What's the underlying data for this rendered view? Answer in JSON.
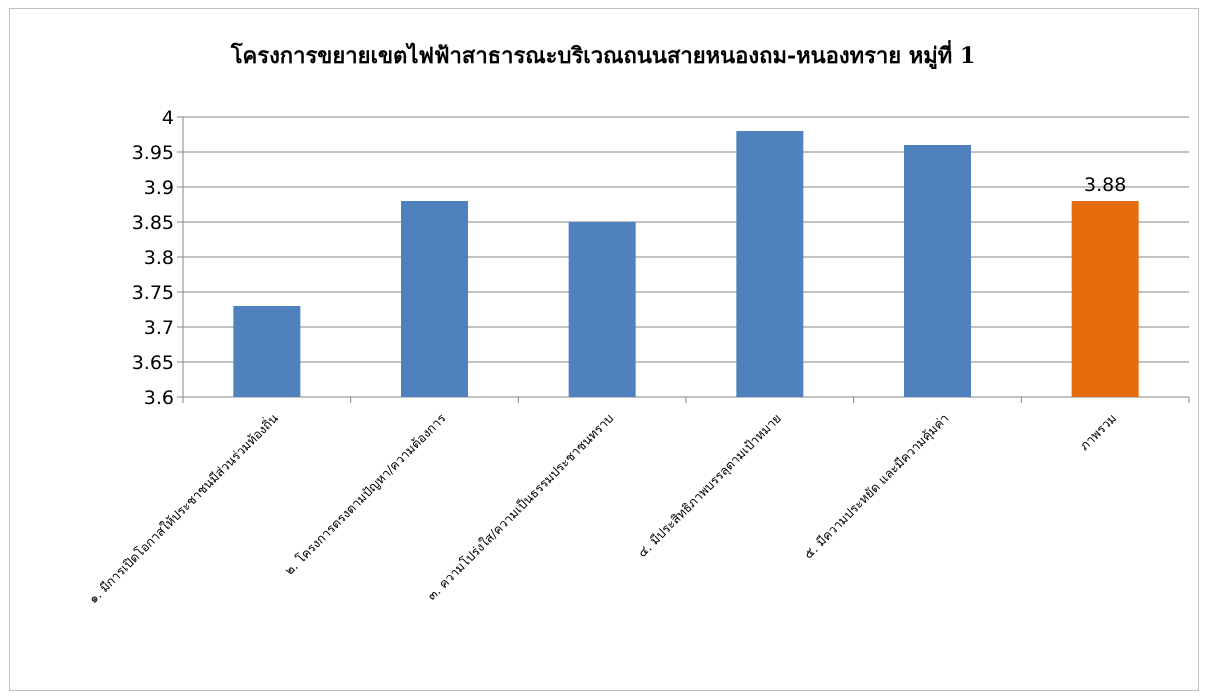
{
  "chart_data": {
    "type": "bar",
    "title": "โครงการขยายเขตไฟฟ้าสาธารณะบริเวณถนนสายหนองถม-หนองทราย หมู่ที่ 1",
    "xlabel": "",
    "ylabel": "",
    "ylim": [
      3.6,
      4.0
    ],
    "yticks": [
      "3.6",
      "3.65",
      "3.7",
      "3.75",
      "3.8",
      "3.85",
      "3.9",
      "3.95",
      "4"
    ],
    "categories": [
      "๑. มีการเปิดโอกาสให้ประชาชนมีส่วนร่วมท้องถิ่น",
      "๒. โครงการตรงตามปัญหา/ความต้องการ",
      "๓. ความโปร่งใส/ความเป็นธรรมประชาชนทราบ",
      "๔. มีประสิทธิภาพบรรลุตามเป้าหมาย",
      "๕. มีความประหยัด และมีความคุ้มค่า",
      "ภาพรวม"
    ],
    "values": [
      3.73,
      3.88,
      3.85,
      3.98,
      3.96,
      3.88
    ],
    "data_labels": [
      "",
      "",
      "",
      "",
      "",
      "3.88"
    ],
    "grid": true,
    "legend": "none",
    "colors": {
      "bar": "#4f81bd",
      "highlight": "#e46c0a",
      "grid": "#868686",
      "axis": "#868686"
    }
  }
}
